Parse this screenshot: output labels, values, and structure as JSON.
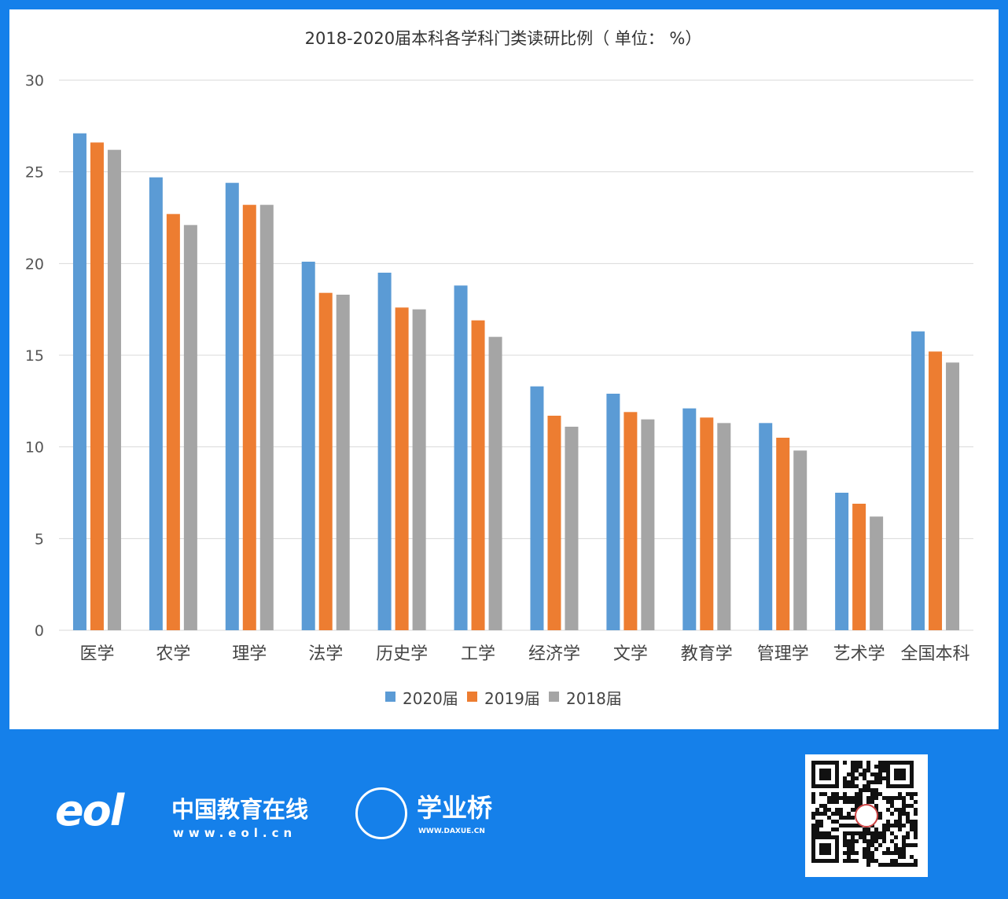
{
  "chart_data": {
    "type": "bar",
    "title": "2018-2020届本科各学科门类读研比例（ 单位： %）",
    "categories": [
      "医学",
      "农学",
      "理学",
      "法学",
      "历史学",
      "工学",
      "经济学",
      "文学",
      "教育学",
      "管理学",
      "艺术学",
      "全国本科"
    ],
    "series": [
      {
        "name": "2020届",
        "color": "#5b9bd5",
        "values": [
          27.1,
          24.7,
          24.4,
          20.1,
          19.5,
          18.8,
          13.3,
          12.9,
          12.1,
          11.3,
          7.5,
          16.3
        ]
      },
      {
        "name": "2019届",
        "color": "#ed7d31",
        "values": [
          26.6,
          22.7,
          23.2,
          18.4,
          17.6,
          16.9,
          11.7,
          11.9,
          11.6,
          10.5,
          6.9,
          15.2
        ]
      },
      {
        "name": "2018届",
        "color": "#a5a5a5",
        "values": [
          26.2,
          22.1,
          23.2,
          18.3,
          17.5,
          16.0,
          11.1,
          11.5,
          11.3,
          9.8,
          6.2,
          14.6
        ]
      }
    ],
    "yticks": [
      "0",
      "5",
      "10",
      "15",
      "20",
      "25",
      "30"
    ],
    "ylim": [
      0,
      30
    ],
    "grid": true,
    "legend": "bottom"
  },
  "footer": {
    "eol_logo": "eol",
    "eol_name": "中国教育在线",
    "eol_url": "www.eol.cn",
    "daxue_name": "学业桥",
    "daxue_url": "WWW.DAXUE.CN"
  },
  "colors": {
    "frame": "#1580ea"
  }
}
